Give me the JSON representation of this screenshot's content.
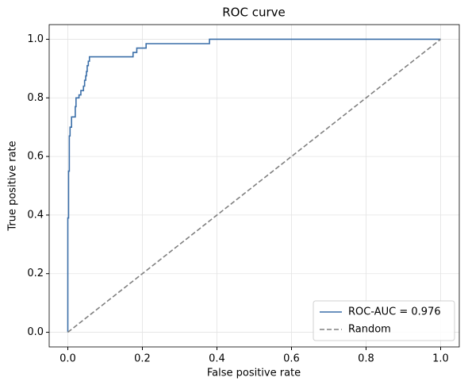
{
  "chart_data": {
    "type": "line",
    "title": "ROC curve",
    "x_label": "False positive rate",
    "y_label": "True positive rate",
    "xlim": [
      -0.05,
      1.05
    ],
    "ylim": [
      -0.05,
      1.05
    ],
    "xticks": [
      {
        "value": 0,
        "label": "0.0"
      },
      0.2,
      0.4,
      0.6,
      0.8,
      {
        "value": 1,
        "label": "1.0"
      }
    ],
    "yticks": [
      {
        "value": 0,
        "label": "0.0"
      },
      0.2,
      0.4,
      0.6,
      0.8,
      {
        "value": 1,
        "label": "1.0"
      }
    ],
    "grid": true,
    "legend": "lower right",
    "series": [
      {
        "name": "ROC-AUC = 0.976",
        "color": "#3a6ea8",
        "dashed": false,
        "x": [
          0,
          0,
          0.002,
          0.002,
          0.004,
          0.004,
          0.006,
          0.006,
          0.01,
          0.01,
          0.02,
          0.02,
          0.022,
          0.022,
          0.03,
          0.03,
          0.035,
          0.035,
          0.042,
          0.042,
          0.045,
          0.045,
          0.048,
          0.048,
          0.05,
          0.05,
          0.052,
          0.052,
          0.055,
          0.055,
          0.058,
          0.058,
          0.175,
          0.175,
          0.185,
          0.185,
          0.21,
          0.21,
          0.38,
          0.38,
          1
        ],
        "y": [
          0,
          0.39,
          0.39,
          0.55,
          0.55,
          0.67,
          0.67,
          0.7,
          0.7,
          0.735,
          0.735,
          0.77,
          0.77,
          0.8,
          0.8,
          0.81,
          0.81,
          0.825,
          0.825,
          0.84,
          0.84,
          0.86,
          0.86,
          0.875,
          0.875,
          0.89,
          0.89,
          0.91,
          0.91,
          0.925,
          0.925,
          0.94,
          0.94,
          0.955,
          0.955,
          0.97,
          0.97,
          0.985,
          0.985,
          1,
          1
        ]
      },
      {
        "name": "Random",
        "color": "#808080",
        "dashed": true,
        "x": [
          0,
          1
        ],
        "y": [
          0,
          1
        ]
      }
    ]
  }
}
